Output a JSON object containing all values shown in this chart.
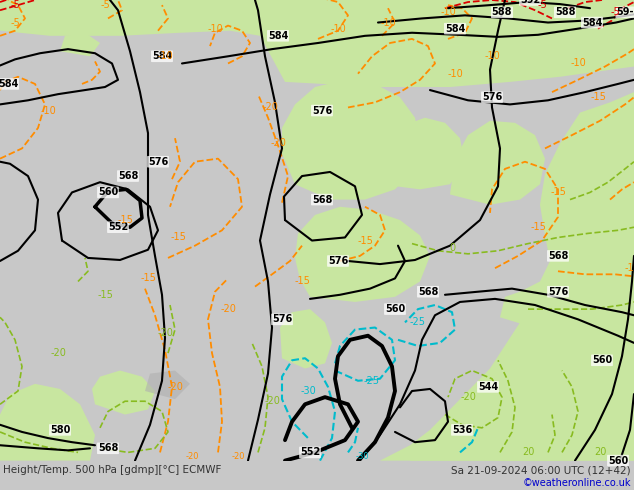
{
  "title_left": "Height/Temp. 500 hPa [gdmp][°C] ECMWF",
  "title_right": "Sa 21-09-2024 06:00 UTC (12+42)",
  "title_right2": "©weatheronline.co.uk",
  "bg_gray": "#c8c8c8",
  "bg_green": "#c8e6a0",
  "land_gray": "#a0a0a0",
  "black": "#000000",
  "orange": "#ff8c00",
  "green_c": "#88bb20",
  "cyan_c": "#00bbcc",
  "red_c": "#dd0000"
}
